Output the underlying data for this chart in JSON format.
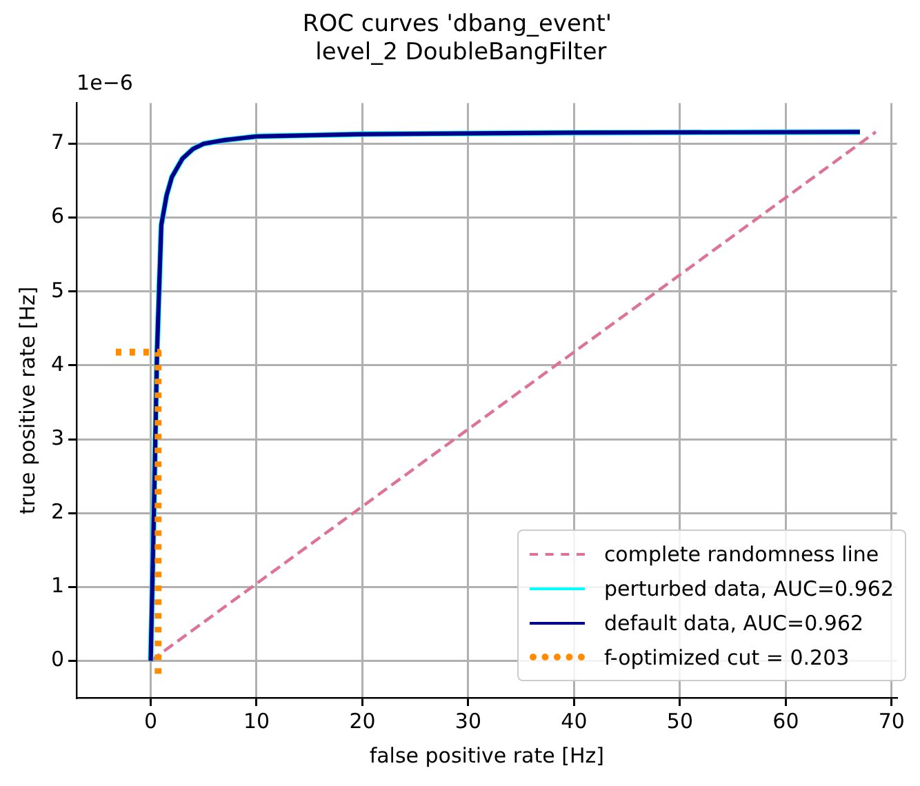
{
  "chart_data": {
    "type": "line",
    "title": "ROC curves 'dbang_event'\n level_2 DoubleBangFilter",
    "xlabel": "false positive rate [Hz]",
    "ylabel": "true positive rate [Hz]",
    "annotations": [
      "1e−6"
    ],
    "series": [
      {
        "name": "complete randomness line",
        "color": "#dd7399",
        "line_style": "dashed",
        "x": [
          0,
          68.5
        ],
        "values": [
          0,
          7.16
        ]
      },
      {
        "name": "perturbed data, AUC=0.962",
        "color": "#00ffff",
        "line_style": "solid",
        "x": [
          0,
          0.3,
          0.6,
          1.0,
          1.5,
          2,
          3,
          4,
          5,
          7,
          10,
          20,
          40,
          67
        ],
        "values": [
          0,
          2,
          4.2,
          5.9,
          6.3,
          6.55,
          6.8,
          6.93,
          7.0,
          7.05,
          7.1,
          7.13,
          7.15,
          7.16
        ]
      },
      {
        "name": "default data, AUC=0.962",
        "color": "#00008b",
        "line_style": "solid",
        "x": [
          0,
          0.3,
          0.6,
          1.0,
          1.5,
          2,
          3,
          4,
          5,
          7,
          10,
          20,
          40,
          67
        ],
        "values": [
          0,
          2,
          4.2,
          5.9,
          6.3,
          6.55,
          6.8,
          6.93,
          7.0,
          7.05,
          7.1,
          7.13,
          7.15,
          7.16
        ]
      },
      {
        "name": "f-optimized cut = 0.203",
        "color": "#ff8c00",
        "line_style": "dotted",
        "x": [
          -3.3,
          0.7,
          0.7
        ],
        "values": [
          4.18,
          4.18,
          -0.25
        ]
      }
    ],
    "xlim": [
      -7,
      70.5
    ],
    "ylim": [
      -0.5,
      7.55
    ],
    "xticks": [
      0,
      10,
      20,
      30,
      40,
      50,
      60,
      70
    ],
    "yticks": [
      0,
      1,
      2,
      3,
      4,
      5,
      6,
      7
    ],
    "grid": true,
    "legend": "bottom right"
  }
}
